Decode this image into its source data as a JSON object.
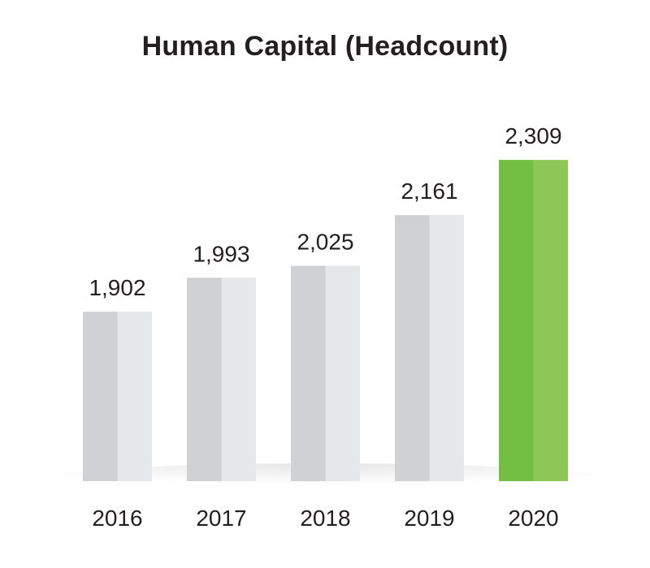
{
  "chart_data": {
    "type": "bar",
    "title": "Human Capital (Headcount)",
    "categories": [
      "2016",
      "2017",
      "2018",
      "2019",
      "2020"
    ],
    "values": [
      1902,
      1993,
      2025,
      2161,
      2309
    ],
    "value_labels": [
      "1,902",
      "1,993",
      "2,025",
      "2,161",
      "2,309"
    ],
    "xlabel": "",
    "ylabel": "",
    "grid": false,
    "legend": "none",
    "highlight_category": "2020",
    "colors": {
      "bar_left": "#d0d1d3",
      "bar_right": "#e6e7e8",
      "highlight_left": "#72bf44",
      "highlight_right": "#8dc758",
      "text": "#231f20"
    }
  }
}
